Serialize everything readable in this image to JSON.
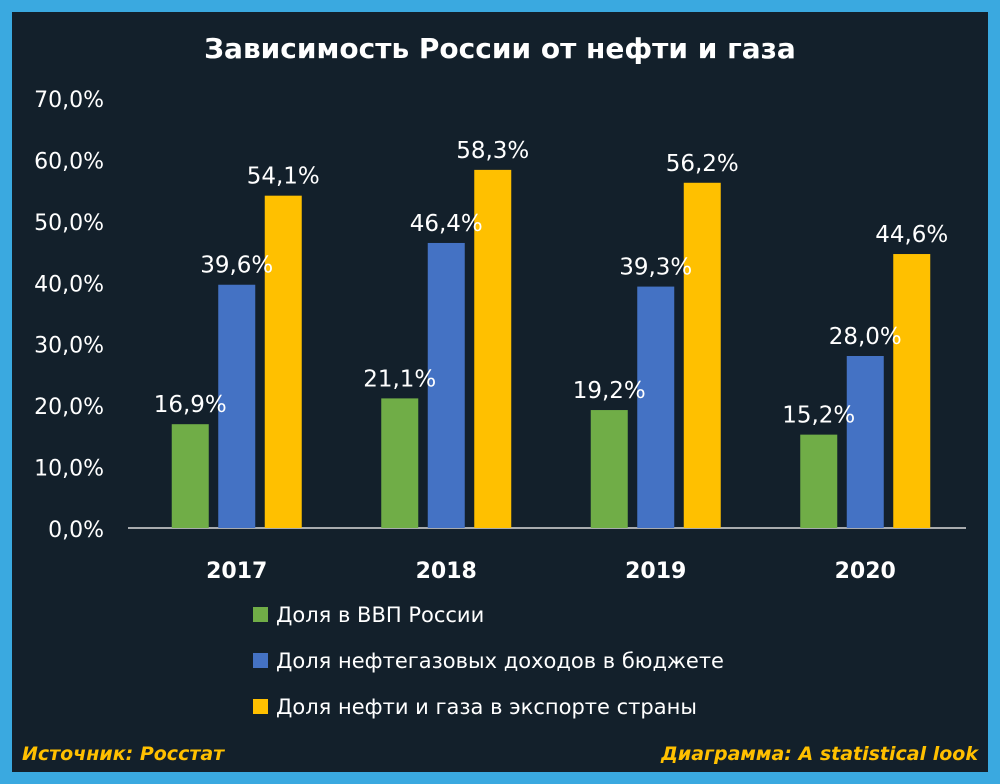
{
  "chart_data": {
    "type": "bar",
    "title": "Зависимость России от нефти и газа",
    "categories": [
      "2017",
      "2018",
      "2019",
      "2020"
    ],
    "series": [
      {
        "name": "Доля в ВВП России",
        "color": "#70ad47",
        "values": [
          16.9,
          21.1,
          19.2,
          15.2
        ],
        "labels": [
          "16,9%",
          "21,1%",
          "19,2%",
          "15,2%"
        ]
      },
      {
        "name": "Доля нефтегазовых доходов в бюджете",
        "color": "#4472c4",
        "values": [
          39.6,
          46.4,
          39.3,
          28.0
        ],
        "labels": [
          "39,6%",
          "46,4%",
          "39,3%",
          "28,0%"
        ]
      },
      {
        "name": "Доля нефти и газа в экспорте страны",
        "color": "#ffc000",
        "values": [
          54.1,
          58.3,
          56.2,
          44.6
        ],
        "labels": [
          "54,1%",
          "58,3%",
          "56,2%",
          "44,6%"
        ]
      }
    ],
    "ylim": [
      0,
      70
    ],
    "yticks": [
      0,
      10,
      20,
      30,
      40,
      50,
      60,
      70
    ],
    "ytick_labels": [
      "0,0%",
      "10,0%",
      "20,0%",
      "30,0%",
      "40,0%",
      "50,0%",
      "60,0%",
      "70,0%"
    ],
    "xlabel": "",
    "ylabel": "",
    "grid": false,
    "legend": "bottom"
  },
  "footer": {
    "source": "Источник: Росстат",
    "credit": "Диаграмма: A statistical look"
  },
  "colors": {
    "background": "#13202b",
    "border": "#3aa9e0",
    "text": "#ffffff",
    "footer_text": "#ffc000"
  }
}
